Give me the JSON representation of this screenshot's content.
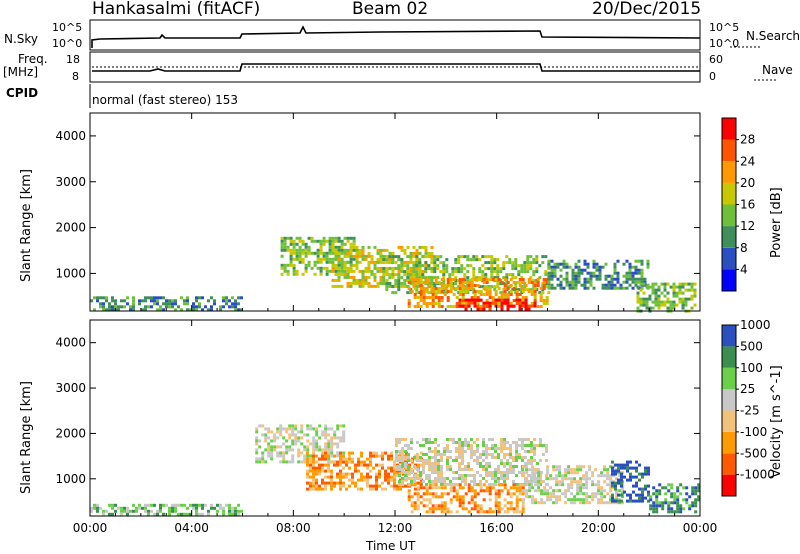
{
  "header": {
    "station": "Hankasalmi (fitACF)",
    "beam": "Beam 02",
    "date": "20/Dec/2015"
  },
  "top_panels": {
    "nsky_label": "N.Sky",
    "nsky_ticks": [
      "10^5",
      "10^0"
    ],
    "nsearch_label": "N.Search",
    "nsearch_ticks": [
      "10^5",
      "10^0"
    ],
    "freq_label": "Freq.",
    "freq_unit": "[MHz]",
    "freq_ticks": [
      "18",
      "8"
    ],
    "nave_label": "Nave",
    "nave_ticks": [
      "60",
      "0"
    ],
    "cpid_label": "CPID",
    "cpid_value": "normal (fast stereo) 153"
  },
  "colors": {
    "power_scale": [
      "#0000ff",
      "#2a4fc2",
      "#3e8f5a",
      "#6fbf3a",
      "#c8c800",
      "#ff9900",
      "#ff5500",
      "#ff0000"
    ],
    "velocity_scale": [
      "#ff0000",
      "#ff5a00",
      "#ff9a00",
      "#f3c27a",
      "#c8c8c8",
      "#6ad04a",
      "#3a8f4e",
      "#2a50c0"
    ]
  },
  "chart_data": [
    {
      "type": "heatmap",
      "title": "",
      "xlabel": "",
      "ylabel": "Slant Range [km]",
      "xlim": [
        0,
        24
      ],
      "ylim": [
        180,
        4500
      ],
      "x_tick_labels": [
        "00:00",
        "04:00",
        "08:00",
        "12:00",
        "16:00",
        "20:00",
        "00:00"
      ],
      "y_tick_values": [
        1000,
        2000,
        3000,
        4000
      ],
      "y_tick_labels": [
        "1000",
        "2000",
        "3000",
        "4000"
      ],
      "colorbar_label": "Power [dB]",
      "colorbar_ticks": [
        "4",
        "8",
        "12",
        "16",
        "20",
        "24",
        "28"
      ],
      "regions": [
        {
          "t0": 0.0,
          "t1": 6.0,
          "r0": 200,
          "r1": 500,
          "level": 2
        },
        {
          "t0": 7.5,
          "t1": 10.5,
          "r0": 1000,
          "r1": 1800,
          "level": 3
        },
        {
          "t0": 9.5,
          "t1": 13.5,
          "r0": 700,
          "r1": 1600,
          "level": 4
        },
        {
          "t0": 11.5,
          "t1": 18.0,
          "r0": 600,
          "r1": 1400,
          "level": 3
        },
        {
          "t0": 12.5,
          "t1": 18.0,
          "r0": 300,
          "r1": 900,
          "level": 5
        },
        {
          "t0": 14.5,
          "t1": 17.5,
          "r0": 200,
          "r1": 450,
          "level": 7
        },
        {
          "t0": 18.0,
          "t1": 22.0,
          "r0": 700,
          "r1": 1300,
          "level": 2
        },
        {
          "t0": 21.5,
          "t1": 23.8,
          "r0": 200,
          "r1": 800,
          "level": 3
        }
      ]
    },
    {
      "type": "heatmap",
      "title": "",
      "xlabel": "Time UT",
      "ylabel": "Slant Range [km]",
      "xlim": [
        0,
        24
      ],
      "ylim": [
        180,
        4500
      ],
      "x_tick_labels": [
        "00:00",
        "04:00",
        "08:00",
        "12:00",
        "16:00",
        "20:00",
        "00:00"
      ],
      "y_tick_values": [
        1000,
        2000,
        3000,
        4000
      ],
      "y_tick_labels": [
        "1000",
        "2000",
        "3000",
        "4000"
      ],
      "colorbar_label": "Velocity [m s^-1]",
      "colorbar_ticks": [
        "-1000",
        "-500",
        "-100",
        "-25",
        "25",
        "100",
        "500",
        "1000"
      ],
      "regions": [
        {
          "t0": 0.0,
          "t1": 6.0,
          "r0": 200,
          "r1": 450,
          "level": 5
        },
        {
          "t0": 6.5,
          "t1": 10.0,
          "r0": 1400,
          "r1": 2200,
          "level": 4
        },
        {
          "t0": 8.5,
          "t1": 13.0,
          "r0": 800,
          "r1": 1600,
          "level": 2
        },
        {
          "t0": 12.0,
          "t1": 18.0,
          "r0": 900,
          "r1": 1900,
          "level": 4
        },
        {
          "t0": 12.5,
          "t1": 17.0,
          "r0": 300,
          "r1": 900,
          "level": 2
        },
        {
          "t0": 17.0,
          "t1": 21.0,
          "r0": 500,
          "r1": 1300,
          "level": 4
        },
        {
          "t0": 20.5,
          "t1": 22.0,
          "r0": 500,
          "r1": 1400,
          "level": 7
        },
        {
          "t0": 22.0,
          "t1": 23.9,
          "r0": 300,
          "r1": 900,
          "level": 6
        }
      ]
    }
  ]
}
